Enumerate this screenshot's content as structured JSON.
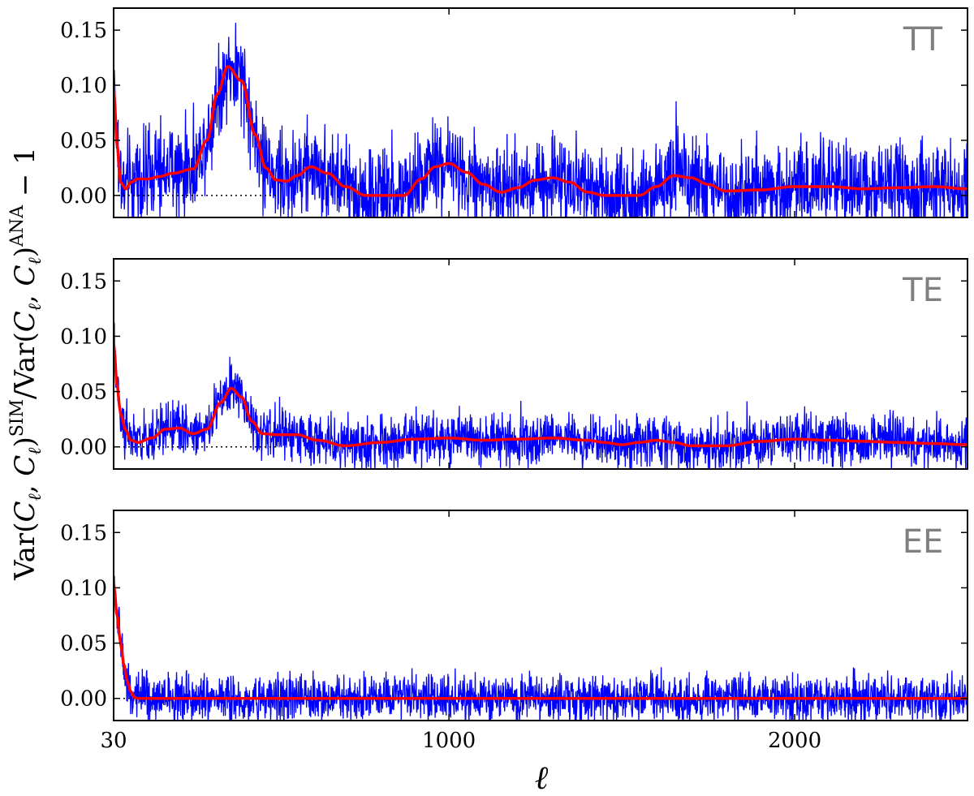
{
  "chart_data": {
    "type": "line",
    "ylabel": "Var(C_ℓ, C_ℓ)^SIM / Var(C_ℓ, C_ℓ)^ANA − 1",
    "ylabel_parts": {
      "a": "Var(",
      "b": "C",
      "b_sub": "ℓ",
      "c": ", ",
      "d": "C",
      "d_sub": "ℓ",
      "e": ")",
      "sup1": "SIM",
      "f": "/Var(",
      "g": "C",
      "g_sub": "ℓ",
      "h": ", ",
      "i": "C",
      "i_sub": "ℓ",
      "j": ")",
      "sup2": "ANA",
      "k": " − 1"
    },
    "xlabel": "ℓ",
    "xlim": [
      30,
      2500
    ],
    "ylim": [
      -0.02,
      0.17
    ],
    "xticks": [
      30,
      1000,
      2000
    ],
    "xtick_labels": [
      "30",
      "1000",
      "2000"
    ],
    "yticks": [
      0.0,
      0.05,
      0.1,
      0.15
    ],
    "ytick_labels": [
      "0.00",
      "0.05",
      "0.10",
      "0.15"
    ],
    "colors": {
      "noisy": "#0000ff",
      "smooth": "#ff0000",
      "zero_line": "#000000",
      "label": "#808080"
    },
    "panels": [
      {
        "label": "TT",
        "noise_amplitude": 0.055,
        "smooth": {
          "x": [
            30,
            40,
            50,
            65,
            80,
            100,
            130,
            160,
            200,
            260,
            300,
            330,
            360,
            400,
            440,
            470,
            500,
            530,
            560,
            600,
            650,
            700,
            760,
            800,
            870,
            920,
            960,
            1000,
            1050,
            1100,
            1150,
            1200,
            1250,
            1300,
            1350,
            1400,
            1450,
            1500,
            1550,
            1600,
            1650,
            1700,
            1750,
            1800,
            1900,
            2000,
            2100,
            2200,
            2300,
            2400,
            2500
          ],
          "y": [
            0.1,
            0.045,
            0.012,
            0.006,
            0.012,
            0.015,
            0.015,
            0.017,
            0.02,
            0.024,
            0.05,
            0.092,
            0.117,
            0.104,
            0.055,
            0.025,
            0.014,
            0.013,
            0.018,
            0.026,
            0.02,
            0.008,
            0.0,
            0.0,
            0.0,
            0.015,
            0.026,
            0.029,
            0.021,
            0.01,
            0.003,
            0.007,
            0.014,
            0.016,
            0.012,
            0.003,
            0.0,
            0.0,
            0.0,
            0.008,
            0.018,
            0.016,
            0.01,
            0.004,
            0.005,
            0.008,
            0.008,
            0.006,
            0.007,
            0.008,
            0.006
          ]
        }
      },
      {
        "label": "TE",
        "noise_amplitude": 0.03,
        "smooth": {
          "x": [
            30,
            40,
            50,
            65,
            80,
            100,
            140,
            180,
            220,
            260,
            300,
            340,
            370,
            400,
            430,
            460,
            500,
            560,
            620,
            700,
            800,
            900,
            1000,
            1100,
            1200,
            1300,
            1400,
            1450,
            1500,
            1550,
            1600,
            1650,
            1700,
            1800,
            1900,
            2000,
            2100,
            2200,
            2300,
            2400,
            2500
          ],
          "y": [
            0.095,
            0.055,
            0.03,
            0.015,
            0.006,
            0.004,
            0.008,
            0.016,
            0.017,
            0.012,
            0.016,
            0.04,
            0.053,
            0.045,
            0.023,
            0.012,
            0.011,
            0.011,
            0.006,
            0.001,
            0.004,
            0.007,
            0.008,
            0.006,
            0.007,
            0.008,
            0.006,
            0.004,
            0.002,
            0.004,
            0.006,
            0.004,
            0.001,
            0.001,
            0.005,
            0.007,
            0.006,
            0.005,
            0.004,
            0.003,
            0.002
          ]
        }
      },
      {
        "label": "EE",
        "noise_amplitude": 0.028,
        "smooth": {
          "x": [
            30,
            40,
            50,
            60,
            70,
            80,
            90,
            100,
            2500
          ],
          "y": [
            0.105,
            0.075,
            0.05,
            0.03,
            0.015,
            0.006,
            0.001,
            0.0,
            0.0
          ]
        }
      }
    ]
  }
}
